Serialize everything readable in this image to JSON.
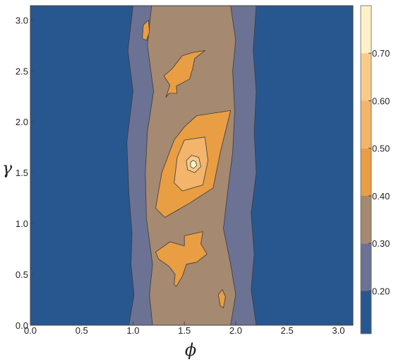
{
  "chart_data": {
    "type": "heatmap",
    "subtype": "filled-contour",
    "xlabel": "ϕ",
    "ylabel": "γ",
    "xlim": [
      0,
      3.14159
    ],
    "ylim": [
      0,
      3.14159
    ],
    "xticks": [
      "0.0",
      "0.5",
      "1.0",
      "1.5",
      "2.0",
      "2.5",
      "3.0"
    ],
    "yticks": [
      "0.0",
      "0.5",
      "1.0",
      "1.5",
      "2.0",
      "2.5",
      "3.0"
    ],
    "colorbar": {
      "range": [
        0.11,
        0.8
      ],
      "ticks": [
        "0.20",
        "0.30",
        "0.40",
        "0.50",
        "0.60",
        "0.70"
      ],
      "levels": [
        {
          "from": 0.11,
          "to": 0.2,
          "color": "#28578f"
        },
        {
          "from": 0.2,
          "to": 0.3,
          "color": "#6b7294"
        },
        {
          "from": 0.3,
          "to": 0.4,
          "color": "#a58970"
        },
        {
          "from": 0.4,
          "to": 0.5,
          "color": "#e99e43"
        },
        {
          "from": 0.5,
          "to": 0.6,
          "color": "#f3b46b"
        },
        {
          "from": 0.6,
          "to": 0.7,
          "color": "#f8cb8b"
        },
        {
          "from": 0.7,
          "to": 0.8,
          "color": "#fdf2c6"
        }
      ]
    },
    "regions": [
      {
        "level": 0.25,
        "points": [
          [
            1.0,
            3.14159
          ],
          [
            0.95,
            2.7
          ],
          [
            1.0,
            2.3
          ],
          [
            0.94,
            1.8
          ],
          [
            0.96,
            1.3
          ],
          [
            0.99,
            0.9
          ],
          [
            0.98,
            0.6
          ],
          [
            1.01,
            0.3
          ],
          [
            0.96,
            0.0
          ],
          [
            2.2,
            0.0
          ],
          [
            2.15,
            0.35
          ],
          [
            2.18,
            0.7
          ],
          [
            2.15,
            1.1
          ],
          [
            2.2,
            1.5
          ],
          [
            2.18,
            1.9
          ],
          [
            2.2,
            2.3
          ],
          [
            2.17,
            2.7
          ],
          [
            2.2,
            3.14159
          ]
        ]
      },
      {
        "level": 0.35,
        "points": [
          [
            1.18,
            3.14159
          ],
          [
            1.14,
            2.75
          ],
          [
            1.2,
            2.3
          ],
          [
            1.14,
            1.9
          ],
          [
            1.12,
            1.5
          ],
          [
            1.13,
            1.05
          ],
          [
            1.19,
            0.6
          ],
          [
            1.16,
            0.3
          ],
          [
            1.19,
            0.0
          ],
          [
            1.95,
            0.0
          ],
          [
            2.0,
            0.3
          ],
          [
            1.95,
            0.6
          ],
          [
            1.88,
            0.95
          ],
          [
            1.92,
            1.3
          ],
          [
            1.97,
            1.7
          ],
          [
            1.99,
            2.1
          ],
          [
            1.97,
            2.5
          ],
          [
            2.0,
            2.8
          ],
          [
            1.95,
            3.14159
          ]
        ]
      },
      {
        "level": 0.45,
        "points": [
          [
            1.62,
            2.06
          ],
          [
            1.95,
            2.11
          ],
          [
            1.85,
            1.7
          ],
          [
            1.78,
            1.35
          ],
          [
            1.55,
            1.2
          ],
          [
            1.31,
            1.06
          ],
          [
            1.22,
            1.15
          ],
          [
            1.28,
            1.5
          ],
          [
            1.4,
            1.82
          ],
          [
            1.5,
            1.95
          ]
        ]
      },
      {
        "level": 0.45,
        "points": [
          [
            1.36,
            0.82
          ],
          [
            1.5,
            0.78
          ],
          [
            1.5,
            0.88
          ],
          [
            1.68,
            0.92
          ],
          [
            1.66,
            0.8
          ],
          [
            1.72,
            0.7
          ],
          [
            1.62,
            0.62
          ],
          [
            1.52,
            0.6
          ],
          [
            1.48,
            0.48
          ],
          [
            1.42,
            0.38
          ],
          [
            1.4,
            0.4
          ],
          [
            1.41,
            0.5
          ],
          [
            1.35,
            0.58
          ],
          [
            1.25,
            0.65
          ],
          [
            1.22,
            0.72
          ]
        ]
      },
      {
        "level": 0.45,
        "points": [
          [
            1.7,
            2.7
          ],
          [
            1.6,
            2.62
          ],
          [
            1.58,
            2.52
          ],
          [
            1.55,
            2.42
          ],
          [
            1.42,
            2.35
          ],
          [
            1.43,
            2.28
          ],
          [
            1.35,
            2.28
          ],
          [
            1.32,
            2.24
          ],
          [
            1.36,
            2.36
          ],
          [
            1.3,
            2.45
          ],
          [
            1.38,
            2.52
          ],
          [
            1.48,
            2.65
          ],
          [
            1.58,
            2.68
          ]
        ]
      },
      {
        "level": 0.45,
        "points": [
          [
            1.1,
            2.95
          ],
          [
            1.15,
            3.0
          ],
          [
            1.16,
            2.88
          ],
          [
            1.13,
            2.8
          ],
          [
            1.09,
            2.82
          ]
        ]
      },
      {
        "level": 0.45,
        "points": [
          [
            1.87,
            0.35
          ],
          [
            1.9,
            0.28
          ],
          [
            1.88,
            0.17
          ],
          [
            1.85,
            0.19
          ],
          [
            1.83,
            0.3
          ]
        ]
      },
      {
        "level": 0.55,
        "points": [
          [
            1.5,
            1.82
          ],
          [
            1.7,
            1.85
          ],
          [
            1.73,
            1.62
          ],
          [
            1.68,
            1.38
          ],
          [
            1.48,
            1.32
          ],
          [
            1.4,
            1.4
          ],
          [
            1.43,
            1.65
          ]
        ]
      },
      {
        "level": 0.65,
        "points": [
          [
            1.57,
            1.67
          ],
          [
            1.64,
            1.65
          ],
          [
            1.66,
            1.56
          ],
          [
            1.6,
            1.5
          ],
          [
            1.53,
            1.53
          ],
          [
            1.52,
            1.62
          ]
        ]
      },
      {
        "level": 0.75,
        "points": [
          [
            1.58,
            1.62
          ],
          [
            1.61,
            1.61
          ],
          [
            1.62,
            1.57
          ],
          [
            1.59,
            1.54
          ],
          [
            1.56,
            1.56
          ],
          [
            1.56,
            1.6
          ]
        ]
      }
    ]
  }
}
